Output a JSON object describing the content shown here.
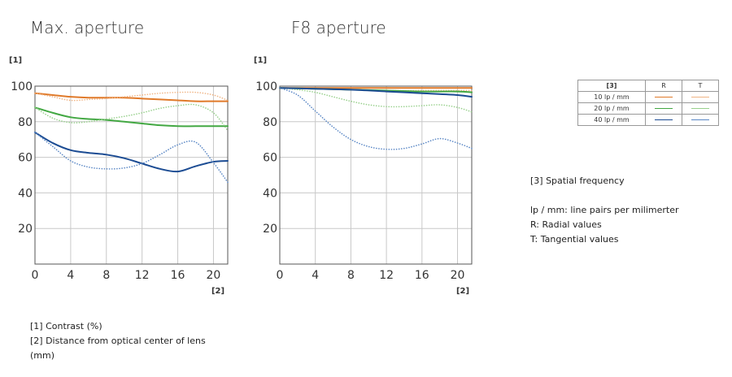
{
  "chart_data": [
    {
      "type": "line",
      "title": "Max. aperture",
      "ylabel": "[1]",
      "xlabel": "[2]",
      "xlim": [
        0,
        21.6
      ],
      "ylim": [
        0,
        100
      ],
      "xticks": [
        "0",
        "4",
        "8",
        "12",
        "16",
        "20"
      ],
      "yticks": [
        "20",
        "40",
        "60",
        "80",
        "100"
      ],
      "grid": true,
      "series": [
        {
          "name": "10 lp / mm R",
          "color": "#e07a2a",
          "style": "solid",
          "x": [
            0,
            2,
            4,
            6,
            8,
            10,
            12,
            14,
            16,
            18,
            20,
            21.6
          ],
          "y": [
            96,
            95,
            94,
            93.5,
            93.5,
            93.5,
            93,
            92.5,
            92,
            91.5,
            91.5,
            91.5
          ]
        },
        {
          "name": "10 lp / mm T",
          "color": "#f0b484",
          "style": "dotted",
          "x": [
            0,
            2,
            4,
            6,
            8,
            10,
            12,
            14,
            16,
            18,
            20,
            21.6
          ],
          "y": [
            96,
            94,
            92,
            92.5,
            93,
            94,
            95,
            96,
            96.5,
            96.5,
            95,
            92
          ]
        },
        {
          "name": "20 lp / mm R",
          "color": "#43a843",
          "style": "solid",
          "x": [
            0,
            2,
            4,
            6,
            8,
            10,
            12,
            14,
            16,
            18,
            20,
            21.6
          ],
          "y": [
            88,
            85,
            82.5,
            81.5,
            81,
            80,
            79,
            78,
            77.5,
            77.5,
            77.5,
            77.5
          ]
        },
        {
          "name": "20 lp / mm T",
          "color": "#98d08c",
          "style": "dotted",
          "x": [
            0,
            2,
            4,
            6,
            8,
            10,
            12,
            14,
            16,
            18,
            20,
            21.6
          ],
          "y": [
            88,
            82,
            79.5,
            80,
            81.5,
            83,
            85,
            87.5,
            89,
            89.5,
            85,
            75
          ]
        },
        {
          "name": "40 lp / mm R",
          "color": "#1c4c93",
          "style": "solid",
          "x": [
            0,
            2,
            4,
            6,
            8,
            10,
            12,
            14,
            16,
            18,
            20,
            21.6
          ],
          "y": [
            74,
            68,
            64,
            62.5,
            61.5,
            59.5,
            56.5,
            53.5,
            52,
            55,
            57.5,
            58
          ]
        },
        {
          "name": "40 lp / mm T",
          "color": "#5a87c5",
          "style": "dotted",
          "x": [
            0,
            2,
            4,
            6,
            8,
            10,
            12,
            14,
            16,
            18,
            20,
            21.6
          ],
          "y": [
            74,
            66,
            58,
            54.5,
            53.5,
            54,
            56.5,
            61.5,
            67,
            68.5,
            57,
            46
          ]
        }
      ]
    },
    {
      "type": "line",
      "title": "F8 aperture",
      "ylabel": "[1]",
      "xlabel": "[2]",
      "xlim": [
        0,
        21.6
      ],
      "ylim": [
        0,
        100
      ],
      "xticks": [
        "0",
        "4",
        "8",
        "12",
        "16",
        "20"
      ],
      "yticks": [
        "20",
        "40",
        "60",
        "80",
        "100"
      ],
      "grid": true,
      "series": [
        {
          "name": "10 lp / mm R",
          "color": "#e07a2a",
          "style": "solid",
          "x": [
            0,
            4,
            8,
            12,
            16,
            20,
            21.6
          ],
          "y": [
            99,
            99,
            99,
            99,
            99,
            99,
            99
          ]
        },
        {
          "name": "10 lp / mm T",
          "color": "#f0b484",
          "style": "dotted",
          "x": [
            0,
            4,
            8,
            12,
            16,
            20,
            21.6
          ],
          "y": [
            99,
            98.5,
            98,
            97.5,
            97.5,
            97.5,
            97.5
          ]
        },
        {
          "name": "20 lp / mm R",
          "color": "#43a843",
          "style": "solid",
          "x": [
            0,
            4,
            8,
            12,
            16,
            20,
            21.6
          ],
          "y": [
            99,
            98.5,
            98,
            97.5,
            97,
            97,
            96.5
          ]
        },
        {
          "name": "20 lp / mm T",
          "color": "#98d08c",
          "style": "dotted",
          "x": [
            0,
            2,
            4,
            6,
            8,
            10,
            12,
            14,
            16,
            18,
            20,
            21.6
          ],
          "y": [
            99,
            98,
            96.5,
            94,
            91.5,
            89.5,
            88.5,
            88.5,
            89,
            89.5,
            88,
            85.5
          ]
        },
        {
          "name": "40 lp / mm R",
          "color": "#1c4c93",
          "style": "solid",
          "x": [
            0,
            4,
            8,
            12,
            16,
            20,
            21.6
          ],
          "y": [
            99,
            98.5,
            98,
            97,
            96,
            95,
            94
          ]
        },
        {
          "name": "40 lp / mm T",
          "color": "#5a87c5",
          "style": "dotted",
          "x": [
            0,
            2,
            4,
            6,
            8,
            10,
            12,
            14,
            16,
            18,
            20,
            21.6
          ],
          "y": [
            99,
            95,
            86,
            77,
            70,
            66,
            64.5,
            65,
            67.5,
            70.5,
            68,
            65
          ]
        }
      ]
    }
  ],
  "legend": {
    "header": [
      "[3]",
      "R",
      "T"
    ],
    "rows": [
      {
        "label": "10 lp / mm",
        "r_color": "#e07a2a",
        "t_color": "#f0b484"
      },
      {
        "label": "20 lp / mm",
        "r_color": "#43a843",
        "t_color": "#98d08c"
      },
      {
        "label": "40 lp / mm",
        "r_color": "#1c4c93",
        "t_color": "#5a87c5"
      }
    ]
  },
  "notes_right": {
    "spatial": "[3] Spatial frequency",
    "lp": "lp / mm: line pairs per milimerter",
    "r": "R: Radial values",
    "t": "T: Tangential values"
  },
  "notes_bottom": {
    "contrast": "[1] Contrast (%)",
    "distance": "[2] Distance from optical center of lens (mm)"
  }
}
